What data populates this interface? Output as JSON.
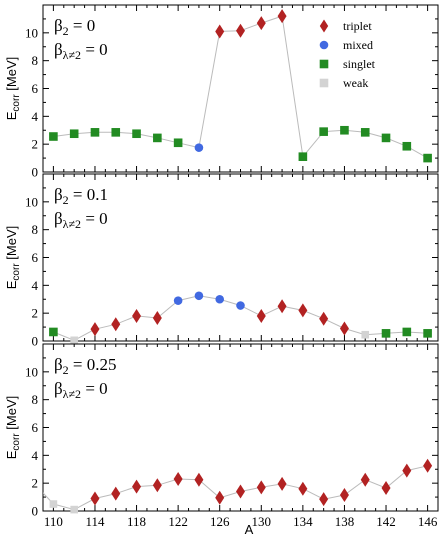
{
  "chart_data": {
    "type": "scatter",
    "x_axis": {
      "label": "A",
      "range": [
        109,
        147
      ],
      "ticks": [
        110,
        114,
        118,
        122,
        126,
        130,
        134,
        138,
        142,
        146
      ],
      "tick_labels": [
        "110",
        "114",
        "118",
        "122",
        "126",
        "130",
        "134",
        "138",
        "142",
        "146"
      ]
    },
    "y_axis": {
      "label_main": "E",
      "label_sub": "corr",
      "label_unit": " [MeV]",
      "range": [
        0,
        12
      ],
      "ticks": [
        0,
        2,
        4,
        6,
        8,
        10
      ],
      "tick_labels": [
        "0",
        "2",
        "4",
        "6",
        "8",
        "10"
      ]
    },
    "legend": {
      "placement": "top-right (top panel)",
      "entries": [
        {
          "name": "triplet",
          "marker": "diamond",
          "color": "#b22222"
        },
        {
          "name": "mixed",
          "marker": "circle",
          "color": "#4169e1"
        },
        {
          "name": "singlet",
          "marker": "square",
          "color": "#228b22"
        },
        {
          "name": "weak",
          "marker": "square",
          "color": "#d3d3d3"
        }
      ]
    },
    "line_color": "#bbbbbb",
    "colors": {
      "triplet": "#b22222",
      "mixed": "#4169e1",
      "singlet": "#228b22",
      "weak": "#d3d3d3"
    },
    "panels": [
      {
        "beta2_label": "β",
        "beta2_sub": "2",
        "beta2_value": "= 0",
        "betal_label": "β",
        "betal_sub": "λ≠2",
        "betal_value": "= 0",
        "points": [
          {
            "x": 110,
            "y": 2.55,
            "kind": "singlet"
          },
          {
            "x": 112,
            "y": 2.75,
            "kind": "singlet"
          },
          {
            "x": 114,
            "y": 2.85,
            "kind": "singlet"
          },
          {
            "x": 116,
            "y": 2.85,
            "kind": "singlet"
          },
          {
            "x": 118,
            "y": 2.75,
            "kind": "singlet"
          },
          {
            "x": 120,
            "y": 2.45,
            "kind": "singlet"
          },
          {
            "x": 122,
            "y": 2.1,
            "kind": "singlet"
          },
          {
            "x": 124,
            "y": 1.75,
            "kind": "mixed"
          },
          {
            "x": 126,
            "y": 10.1,
            "kind": "triplet"
          },
          {
            "x": 128,
            "y": 10.15,
            "kind": "triplet"
          },
          {
            "x": 130,
            "y": 10.7,
            "kind": "triplet"
          },
          {
            "x": 132,
            "y": 11.2,
            "kind": "triplet"
          },
          {
            "x": 134,
            "y": 1.1,
            "kind": "singlet"
          },
          {
            "x": 136,
            "y": 2.9,
            "kind": "singlet"
          },
          {
            "x": 138,
            "y": 3.0,
            "kind": "singlet"
          },
          {
            "x": 140,
            "y": 2.85,
            "kind": "singlet"
          },
          {
            "x": 142,
            "y": 2.45,
            "kind": "singlet"
          },
          {
            "x": 144,
            "y": 1.85,
            "kind": "singlet"
          },
          {
            "x": 146,
            "y": 1.0,
            "kind": "singlet"
          }
        ]
      },
      {
        "beta2_label": "β",
        "beta2_sub": "2",
        "beta2_value": "= 0.1",
        "betal_label": "β",
        "betal_sub": "λ≠2",
        "betal_value": "= 0",
        "points": [
          {
            "x": 110,
            "y": 0.65,
            "kind": "singlet"
          },
          {
            "x": 112,
            "y": 0.05,
            "kind": "weak"
          },
          {
            "x": 114,
            "y": 0.85,
            "kind": "triplet"
          },
          {
            "x": 116,
            "y": 1.2,
            "kind": "triplet"
          },
          {
            "x": 118,
            "y": 1.8,
            "kind": "triplet"
          },
          {
            "x": 120,
            "y": 1.65,
            "kind": "triplet"
          },
          {
            "x": 122,
            "y": 2.9,
            "kind": "mixed"
          },
          {
            "x": 124,
            "y": 3.25,
            "kind": "mixed"
          },
          {
            "x": 126,
            "y": 3.0,
            "kind": "mixed"
          },
          {
            "x": 128,
            "y": 2.55,
            "kind": "mixed"
          },
          {
            "x": 130,
            "y": 1.8,
            "kind": "triplet"
          },
          {
            "x": 132,
            "y": 2.5,
            "kind": "triplet"
          },
          {
            "x": 134,
            "y": 2.2,
            "kind": "triplet"
          },
          {
            "x": 136,
            "y": 1.6,
            "kind": "triplet"
          },
          {
            "x": 138,
            "y": 0.9,
            "kind": "triplet"
          },
          {
            "x": 140,
            "y": 0.45,
            "kind": "weak"
          },
          {
            "x": 142,
            "y": 0.55,
            "kind": "singlet"
          },
          {
            "x": 144,
            "y": 0.65,
            "kind": "singlet"
          },
          {
            "x": 146,
            "y": 0.55,
            "kind": "singlet"
          }
        ]
      },
      {
        "beta2_label": "β",
        "beta2_sub": "2",
        "beta2_value": "= 0.25",
        "betal_label": "β",
        "betal_sub": "λ≠2",
        "betal_value": "= 0",
        "points": [
          {
            "x": 109,
            "y": 1.3,
            "kind": "weak"
          },
          {
            "x": 110,
            "y": 0.5,
            "kind": "weak"
          },
          {
            "x": 112,
            "y": 0.1,
            "kind": "weak"
          },
          {
            "x": 114,
            "y": 0.9,
            "kind": "triplet"
          },
          {
            "x": 116,
            "y": 1.25,
            "kind": "triplet"
          },
          {
            "x": 118,
            "y": 1.75,
            "kind": "triplet"
          },
          {
            "x": 120,
            "y": 1.85,
            "kind": "triplet"
          },
          {
            "x": 122,
            "y": 2.3,
            "kind": "triplet"
          },
          {
            "x": 124,
            "y": 2.25,
            "kind": "triplet"
          },
          {
            "x": 126,
            "y": 0.95,
            "kind": "triplet"
          },
          {
            "x": 128,
            "y": 1.4,
            "kind": "triplet"
          },
          {
            "x": 130,
            "y": 1.7,
            "kind": "triplet"
          },
          {
            "x": 132,
            "y": 1.95,
            "kind": "triplet"
          },
          {
            "x": 134,
            "y": 1.6,
            "kind": "triplet"
          },
          {
            "x": 136,
            "y": 0.85,
            "kind": "triplet"
          },
          {
            "x": 138,
            "y": 1.15,
            "kind": "triplet"
          },
          {
            "x": 140,
            "y": 2.25,
            "kind": "triplet"
          },
          {
            "x": 142,
            "y": 1.65,
            "kind": "triplet"
          },
          {
            "x": 144,
            "y": 2.9,
            "kind": "triplet"
          },
          {
            "x": 146,
            "y": 3.25,
            "kind": "triplet"
          }
        ]
      }
    ]
  }
}
